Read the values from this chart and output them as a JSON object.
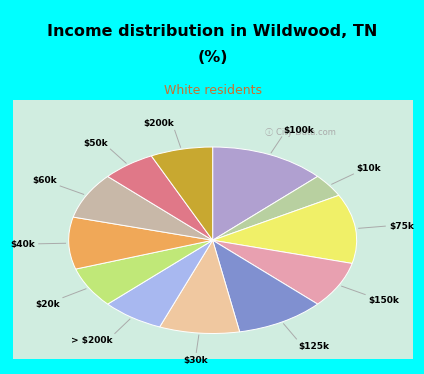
{
  "title_line1": "Income distribution in Wildwood, TN",
  "title_line2": "(%)",
  "subtitle": "White residents",
  "bg_cyan": "#00FFFF",
  "bg_chart_color": "#c8ead8",
  "labels": [
    "$100k",
    "$10k",
    "$75k",
    "$150k",
    "$125k",
    "$30k",
    "> $200k",
    "$20k",
    "$40k",
    "$60k",
    "$50k",
    "$200k"
  ],
  "values": [
    13,
    4,
    12,
    8,
    10,
    9,
    7,
    7,
    9,
    8,
    6,
    7
  ],
  "colors": [
    "#b0a0d0",
    "#b8d0a0",
    "#f0f068",
    "#e8a0b0",
    "#8090d0",
    "#f0c8a0",
    "#a8b8f0",
    "#c0e878",
    "#f0a858",
    "#c8b8a8",
    "#e07888",
    "#c8a830"
  ],
  "watermark": "City-Data.com"
}
